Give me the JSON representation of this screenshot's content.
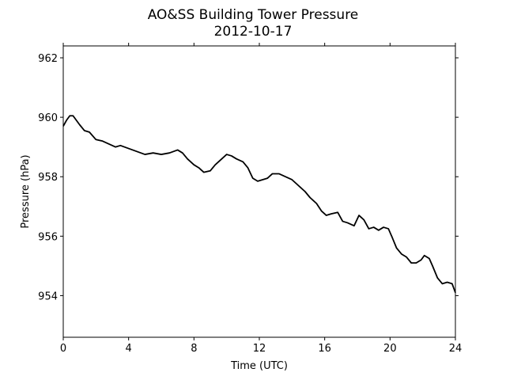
{
  "chart_data": {
    "type": "line",
    "title": "AO&SS Building Tower Pressure",
    "subtitle": "2012-10-17",
    "xlabel": "Time (UTC)",
    "ylabel": "Pressure (hPa)",
    "xlim": [
      0,
      24
    ],
    "ylim": [
      952.6,
      962.4
    ],
    "xticks": [
      0,
      4,
      8,
      12,
      16,
      20,
      24
    ],
    "yticks": [
      954,
      956,
      958,
      960,
      962
    ],
    "grid": false,
    "line_color": "#000000",
    "series": [
      {
        "x": [
          0,
          0.2,
          0.4,
          0.6,
          0.8,
          1.0,
          1.3,
          1.6,
          2.0,
          2.4,
          2.8,
          3.2,
          3.5,
          4.0,
          4.5,
          5.0,
          5.5,
          6.0,
          6.5,
          7.0,
          7.3,
          7.6,
          8.0,
          8.3,
          8.6,
          9.0,
          9.3,
          9.6,
          10.0,
          10.3,
          10.6,
          11.0,
          11.3,
          11.6,
          11.9,
          12.2,
          12.5,
          12.8,
          13.2,
          13.6,
          14.0,
          14.4,
          14.8,
          15.1,
          15.5,
          15.8,
          16.1,
          16.4,
          16.8,
          17.1,
          17.4,
          17.8,
          18.1,
          18.4,
          18.7,
          19.0,
          19.3,
          19.6,
          19.9,
          20.1,
          20.4,
          20.7,
          21.0,
          21.3,
          21.6,
          21.9,
          22.1,
          22.4,
          22.6,
          22.9,
          23.2,
          23.5,
          23.8,
          24.0
        ],
        "y": [
          959.7,
          959.9,
          960.05,
          960.05,
          959.9,
          959.75,
          959.55,
          959.5,
          959.25,
          959.2,
          959.1,
          959.0,
          959.05,
          958.95,
          958.85,
          958.75,
          958.8,
          958.75,
          958.8,
          958.9,
          958.8,
          958.6,
          958.4,
          958.3,
          958.15,
          958.2,
          958.4,
          958.55,
          958.75,
          958.7,
          958.6,
          958.5,
          958.3,
          957.95,
          957.85,
          957.9,
          957.95,
          958.1,
          958.1,
          958.0,
          957.9,
          957.7,
          957.5,
          957.3,
          957.1,
          956.85,
          956.7,
          956.75,
          956.8,
          956.5,
          956.45,
          956.35,
          956.7,
          956.55,
          956.25,
          956.3,
          956.2,
          956.3,
          956.25,
          956.0,
          955.6,
          955.4,
          955.3,
          955.1,
          955.1,
          955.2,
          955.35,
          955.25,
          955.0,
          954.6,
          954.4,
          954.45,
          954.4,
          954.1
        ]
      }
    ]
  }
}
